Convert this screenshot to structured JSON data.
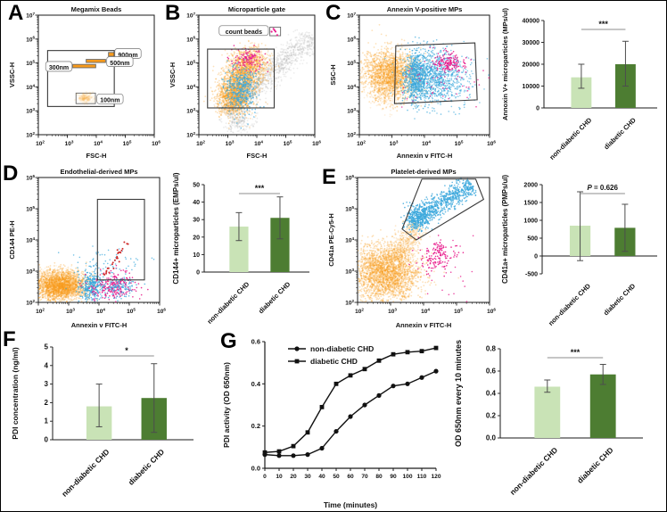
{
  "figure": {
    "labels": {
      "A": "A",
      "B": "B",
      "C": "C",
      "D": "D",
      "E": "E",
      "F": "F",
      "G": "G"
    },
    "colors": {
      "light_green": "#c9e3b6",
      "dark_green": "#4d7d32",
      "orange": "#F89B1C",
      "blue": "#3BA8DC",
      "magenta": "#E9218E",
      "red": "#CC2222",
      "gray": "#9a9a9a",
      "error_bar": "#4d4d4d",
      "sig_line": "#8c8c8c",
      "axis": "#1a1a1a"
    },
    "group_labels": [
      "non-diabetic CHD",
      "diabetic CHD"
    ]
  },
  "chart_data": [
    {
      "id": "A",
      "type": "scatter",
      "subtype": "flow",
      "title": "Megamix Beads",
      "xlabel": "FSC-H",
      "ylabel": "VSSC-H",
      "xlog": [
        2,
        6
      ],
      "ylog": [
        2,
        7
      ],
      "gates": [
        {
          "shape": "rect",
          "x1": 2.32,
          "y1": 3.18,
          "x2": 4.62,
          "y2": 5.52
        }
      ],
      "boxes": [
        {
          "x1": 4.42,
          "y1": 5.28,
          "x2": 4.62,
          "y2": 5.44,
          "fill": "orange",
          "name": "bead-900nm"
        },
        {
          "x1": 3.65,
          "y1": 5.02,
          "x2": 4.32,
          "y2": 5.15,
          "fill": "orange",
          "name": "bead-500nm"
        },
        {
          "x1": 3.18,
          "y1": 4.8,
          "x2": 3.98,
          "y2": 4.94,
          "fill": "orange",
          "name": "bead-300nm"
        },
        {
          "x1": 3.3,
          "y1": 3.3,
          "x2": 3.97,
          "y2": 3.74,
          "fill": "white",
          "name": "box-100nm"
        }
      ],
      "tags": [
        {
          "text": "900nm",
          "x": 4.7,
          "y": 5.36,
          "anchor": "start"
        },
        {
          "text": "500nm",
          "x": 4.42,
          "y": 5.02,
          "anchor": "start"
        },
        {
          "text": "300nm",
          "x": 3.1,
          "y": 4.82,
          "anchor": "end"
        },
        {
          "text": "100nm",
          "x": 4.08,
          "y": 3.46,
          "anchor": "start"
        }
      ],
      "clusters": [
        {
          "cx": 3.63,
          "cy": 3.52,
          "sx": 0.13,
          "sy": 0.1,
          "n": 140,
          "color": "orange",
          "op": 0.1,
          "r": 1.2
        }
      ]
    },
    {
      "id": "B",
      "type": "scatter",
      "subtype": "flow",
      "title": "Microparticle gate",
      "xlabel": "FSC-H",
      "ylabel": "VSSC-H",
      "xlog": [
        2,
        6
      ],
      "ylog": [
        2,
        7
      ],
      "gates": [
        {
          "shape": "rect",
          "x1": 2.3,
          "y1": 3.12,
          "x2": 4.6,
          "y2": 5.58
        }
      ],
      "boxes": [
        {
          "x1": 4.45,
          "y1": 6.14,
          "x2": 4.82,
          "y2": 6.5,
          "fill": "white",
          "name": "count-beads-box"
        }
      ],
      "tags": [
        {
          "text": "count beads",
          "x": 3.55,
          "y": 6.32,
          "anchor": "middle"
        }
      ],
      "clusters": [
        {
          "type": "streak",
          "x1": 2.9,
          "y1": 2.9,
          "x2": 5.95,
          "y2": 6.15,
          "sd": 0.25,
          "n": 1200,
          "color": "gray",
          "op": 0.18,
          "r": 0.9
        },
        {
          "cx": 3.35,
          "cy": 2.5,
          "sx": 0.25,
          "sy": 0.25,
          "n": 200,
          "color": "gray",
          "op": 0.18,
          "r": 0.9
        },
        {
          "cx": 3.2,
          "cy": 3.6,
          "sx": 0.3,
          "sy": 0.4,
          "n": 1200,
          "color": "orange",
          "op": 0.3,
          "r": 0.9
        },
        {
          "cx": 3.55,
          "cy": 4.5,
          "sx": 0.33,
          "sy": 0.45,
          "n": 1000,
          "color": "orange",
          "op": 0.3,
          "r": 0.9
        },
        {
          "cx": 3.85,
          "cy": 5.05,
          "sx": 0.3,
          "sy": 0.3,
          "n": 500,
          "color": "orange",
          "op": 0.28,
          "r": 0.9
        },
        {
          "cx": 3.45,
          "cy": 3.9,
          "sx": 0.28,
          "sy": 0.5,
          "n": 420,
          "color": "blue",
          "op": 0.75,
          "r": 0.8
        },
        {
          "cx": 3.7,
          "cy": 5.15,
          "sx": 0.3,
          "sy": 0.22,
          "n": 120,
          "color": "magenta",
          "op": 0.9,
          "r": 0.8
        },
        {
          "cx": 4.64,
          "cy": 6.32,
          "sx": 0.07,
          "sy": 0.07,
          "n": 5,
          "color": "magenta",
          "op": 1,
          "r": 1.1
        }
      ]
    },
    {
      "id": "C",
      "type": "scatter",
      "subtype": "flow",
      "title": "Annexin V-positive MPs",
      "xlabel": "Annexin v FITC-H",
      "ylabel": "SSC-H",
      "xlog": [
        2,
        6
      ],
      "ylog": [
        2,
        7
      ],
      "gates": [
        {
          "shape": "poly",
          "pts": [
            [
              3.08,
              3.3
            ],
            [
              5.62,
              3.46
            ],
            [
              5.55,
              5.84
            ],
            [
              3.12,
              5.72
            ]
          ]
        }
      ],
      "boxes": [],
      "tags": [],
      "clusters": [
        {
          "cx": 2.95,
          "cy": 4.55,
          "sx": 0.42,
          "sy": 0.5,
          "n": 1900,
          "color": "orange",
          "op": 0.3,
          "r": 0.9
        },
        {
          "cx": 2.85,
          "cy": 3.7,
          "sx": 0.3,
          "sy": 0.35,
          "n": 280,
          "color": "orange",
          "op": 0.15,
          "r": 0.9
        },
        {
          "cx": 3.75,
          "cy": 4.4,
          "sx": 0.17,
          "sy": 0.55,
          "n": 650,
          "color": "blue",
          "op": 0.7,
          "r": 0.8
        },
        {
          "cx": 4.25,
          "cy": 4.45,
          "sx": 0.42,
          "sy": 0.55,
          "n": 700,
          "color": "blue",
          "op": 0.65,
          "r": 0.8
        },
        {
          "cx": 4.7,
          "cy": 4.3,
          "sx": 0.5,
          "sy": 0.6,
          "n": 260,
          "color": "blue",
          "op": 0.6,
          "r": 0.8
        },
        {
          "cx": 4.75,
          "cy": 5.02,
          "sx": 0.22,
          "sy": 0.18,
          "n": 140,
          "color": "magenta",
          "op": 0.95,
          "r": 0.8
        },
        {
          "cx": 4.5,
          "cy": 4.4,
          "sx": 0.6,
          "sy": 0.55,
          "n": 60,
          "color": "magenta",
          "op": 0.8,
          "r": 0.8
        }
      ]
    },
    {
      "id": "C_bar",
      "type": "bar",
      "ylabel": "Annoxin V+ microparticles (MPs/ul)",
      "categories": [
        "non-diabetic CHD",
        "diabetic CHD"
      ],
      "values": [
        14000,
        20000
      ],
      "err_low": [
        9000,
        10000
      ],
      "err_high": [
        20000,
        30500
      ],
      "ylim": [
        0,
        40000
      ],
      "yticks": [
        0,
        10000,
        20000,
        30000,
        40000
      ],
      "ytick_labels": [
        "0",
        "10000",
        "20000",
        "30000",
        "40000"
      ],
      "significance": "***"
    },
    {
      "id": "D",
      "type": "scatter",
      "subtype": "flow",
      "title": "Endothelial-derived MPs",
      "xlabel": "Annexin v FITC-H",
      "ylabel": "CD144 PE-H",
      "xlog": [
        2,
        6
      ],
      "ylog": [
        2,
        6
      ],
      "gates": [
        {
          "shape": "rect",
          "x1": 3.95,
          "y1": 2.72,
          "x2": 5.5,
          "y2": 5.3
        }
      ],
      "boxes": [],
      "tags": [],
      "clusters": [
        {
          "cx": 2.7,
          "cy": 2.52,
          "sx": 0.45,
          "sy": 0.23,
          "n": 2300,
          "color": "orange",
          "op": 0.32,
          "r": 0.9
        },
        {
          "cx": 2.7,
          "cy": 2.85,
          "sx": 0.4,
          "sy": 0.15,
          "n": 250,
          "color": "orange",
          "op": 0.12,
          "r": 0.9
        },
        {
          "cx": 3.75,
          "cy": 2.5,
          "sx": 0.2,
          "sy": 0.25,
          "n": 330,
          "color": "blue",
          "op": 0.8,
          "r": 0.8
        },
        {
          "cx": 4.5,
          "cy": 2.5,
          "sx": 0.36,
          "sy": 0.22,
          "n": 240,
          "color": "magenta",
          "op": 0.9,
          "r": 0.8
        },
        {
          "cx": 4.65,
          "cy": 2.45,
          "sx": 0.3,
          "sy": 0.18,
          "n": 110,
          "color": "blue",
          "op": 0.8,
          "r": 0.8
        },
        {
          "cx": 4.3,
          "cy": 3.1,
          "sx": 0.65,
          "sy": 0.35,
          "n": 80,
          "color": "blue",
          "op": 0.7,
          "r": 0.8
        },
        {
          "type": "streak",
          "x1": 4.15,
          "y1": 2.8,
          "x2": 4.95,
          "y2": 3.95,
          "sd": 0.05,
          "n": 26,
          "color": "red",
          "op": 0.95,
          "r": 1.0
        }
      ]
    },
    {
      "id": "D_bar",
      "type": "bar",
      "ylabel": "CD144+ microparticles (EMPs/ul)",
      "categories": [
        "non-diabetic CHD",
        "diabetic CHD"
      ],
      "values": [
        26,
        31
      ],
      "err_low": [
        18,
        19
      ],
      "err_high": [
        34,
        43
      ],
      "ylim": [
        0,
        50
      ],
      "yticks": [
        0,
        10,
        20,
        30,
        40,
        50
      ],
      "ytick_labels": [
        "0",
        "10",
        "20",
        "30",
        "40",
        "50"
      ],
      "significance": "***"
    },
    {
      "id": "E",
      "type": "scatter",
      "subtype": "flow",
      "title": "Platelet-derived MPs",
      "xlabel": "Annexin v FITC-H",
      "ylabel": "CD41a PE-Cy5-H",
      "xlog": [
        2,
        6
      ],
      "ylog": [
        2,
        6
      ],
      "gates": [
        {
          "shape": "poly",
          "pts": [
            [
              3.35,
              4.35
            ],
            [
              3.95,
              5.95
            ],
            [
              5.58,
              5.95
            ],
            [
              5.82,
              5.3
            ],
            [
              3.78,
              4.0
            ]
          ]
        }
      ],
      "boxes": [],
      "tags": [],
      "clusters": [
        {
          "cx": 2.85,
          "cy": 2.95,
          "sx": 0.5,
          "sy": 0.45,
          "n": 2600,
          "color": "orange",
          "op": 0.3,
          "r": 0.9
        },
        {
          "type": "streak",
          "x1": 3.1,
          "y1": 3.4,
          "x2": 3.85,
          "y2": 4.5,
          "sd": 0.2,
          "n": 450,
          "color": "orange",
          "op": 0.22,
          "r": 0.9
        },
        {
          "type": "streak",
          "x1": 3.65,
          "y1": 4.55,
          "x2": 5.45,
          "y2": 5.8,
          "sd": 0.17,
          "n": 750,
          "color": "blue",
          "op": 0.8,
          "r": 0.8
        },
        {
          "cx": 3.8,
          "cy": 4.7,
          "sx": 0.18,
          "sy": 0.2,
          "n": 260,
          "color": "blue",
          "op": 0.85,
          "r": 0.8
        },
        {
          "cx": 4.4,
          "cy": 3.5,
          "sx": 0.28,
          "sy": 0.26,
          "n": 140,
          "color": "magenta",
          "op": 0.95,
          "r": 0.8
        },
        {
          "cx": 4.8,
          "cy": 3.2,
          "sx": 0.6,
          "sy": 0.5,
          "n": 30,
          "color": "magenta",
          "op": 0.8,
          "r": 0.8
        }
      ]
    },
    {
      "id": "E_bar",
      "type": "bar",
      "ylabel": "CD41a+ microparticles (PMPs/ul)",
      "categories": [
        "non-diabetic CHD",
        "diabetic CHD"
      ],
      "values": [
        850,
        790
      ],
      "err_low": [
        -130,
        130
      ],
      "err_high": [
        1800,
        1450
      ],
      "ylim": [
        -500,
        2000
      ],
      "yticks": [
        -500,
        0,
        500,
        1000,
        1500,
        2000
      ],
      "ytick_labels": [
        "-500",
        "0",
        "500",
        "1000",
        "1500",
        "2000"
      ],
      "significance": "P = 0.626"
    },
    {
      "id": "F_bar",
      "type": "bar",
      "ylabel": "PDI concentration (ng/ml)",
      "categories": [
        "non-diabetic CHD",
        "diabetic CHD"
      ],
      "values": [
        1.8,
        2.25
      ],
      "err_low": [
        0.7,
        0.4
      ],
      "err_high": [
        3.0,
        4.1
      ],
      "ylim": [
        0,
        5
      ],
      "yticks": [
        0,
        1,
        2,
        3,
        4,
        5
      ],
      "ytick_labels": [
        "0",
        "1",
        "2",
        "3",
        "4",
        "5"
      ],
      "significance": "*"
    },
    {
      "id": "G_line",
      "type": "line",
      "xlabel": "Time (minutes)",
      "ylabel": "PDI activity (OD 650nm)",
      "x": [
        0,
        10,
        20,
        30,
        40,
        50,
        60,
        70,
        80,
        90,
        100,
        110,
        120
      ],
      "series": [
        {
          "name": "non-diabetic CHD",
          "marker": "circle",
          "values": [
            0.065,
            0.06,
            0.06,
            0.065,
            0.095,
            0.175,
            0.245,
            0.3,
            0.345,
            0.39,
            0.4,
            0.43,
            0.46
          ]
        },
        {
          "name": "diabetic CHD",
          "marker": "square",
          "values": [
            0.075,
            0.08,
            0.105,
            0.17,
            0.29,
            0.4,
            0.44,
            0.47,
            0.51,
            0.54,
            0.55,
            0.555,
            0.57
          ]
        }
      ],
      "ylim": [
        0,
        0.6
      ],
      "yticks": [
        0,
        0.2,
        0.4,
        0.6
      ],
      "ytick_labels": [
        "0.0",
        "0.2",
        "0.4",
        "0.6"
      ]
    },
    {
      "id": "G_bar",
      "type": "bar",
      "ylabel": "OD 650nm every 10 minutes",
      "categories": [
        "non-diabetic CHD",
        "diabetic CHD"
      ],
      "values": [
        0.46,
        0.57
      ],
      "err_low": [
        0.41,
        0.48
      ],
      "err_high": [
        0.52,
        0.66
      ],
      "ylim": [
        0,
        0.8
      ],
      "yticks": [
        0,
        0.2,
        0.4,
        0.6,
        0.8
      ],
      "ytick_labels": [
        "0.0",
        "0.2",
        "0.4",
        "0.6",
        "0.8"
      ],
      "significance": "***"
    }
  ]
}
